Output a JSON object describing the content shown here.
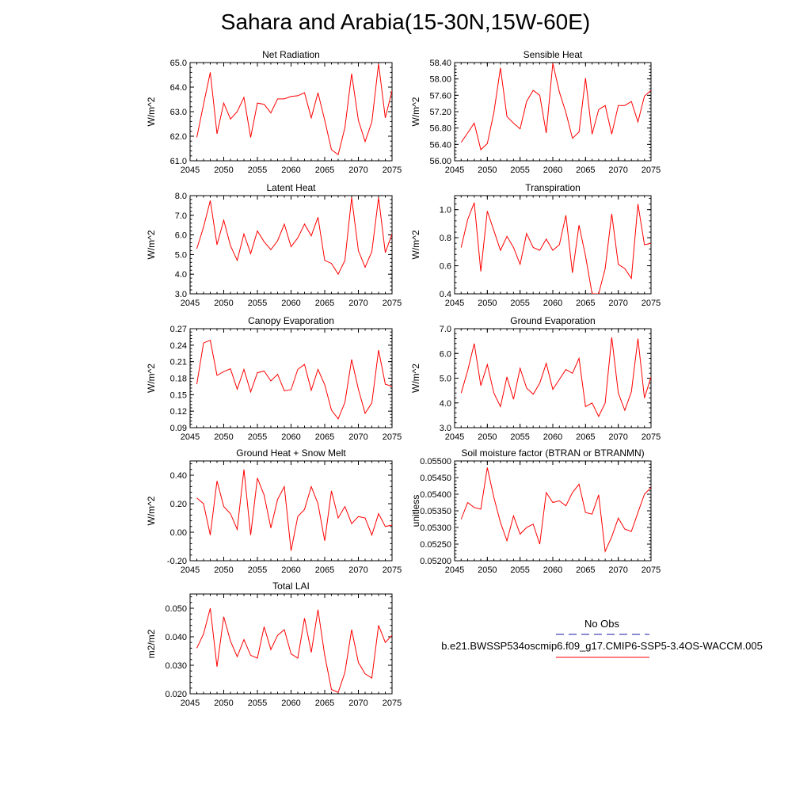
{
  "figure": {
    "title": "Sahara and Arabia(15-30N,15W-60E)"
  },
  "legend": {
    "obs_label": "No Obs",
    "model_label": "b.e21.BWSSP534oscmip6.f09_g17.CMIP6-SSP5-3.4OS-WACCM.005",
    "obs_color": "#1a1aa6",
    "model_color": "#ff0000"
  },
  "chart_data": [
    {
      "type": "line",
      "title": "Net Radiation",
      "ylabel": "W/m^2",
      "xlabel": "",
      "xlim": [
        2045,
        2075
      ],
      "ylim": [
        61.0,
        65.0
      ],
      "yticks": [
        "61.0",
        "62.0",
        "63.0",
        "64.0",
        "65.0"
      ],
      "yticks_values": [
        61.0,
        62.0,
        63.0,
        64.0,
        65.0
      ],
      "xticks": [
        "2045",
        "2050",
        "2055",
        "2060",
        "2065",
        "2070",
        "2075"
      ],
      "series": [
        {
          "name": "b.e21.BWSSP534oscmip6.f09_g17.CMIP6-SSP5-3.4OS-WACCM.005",
          "color": "#ff0000",
          "x": [
            2046,
            2047,
            2048,
            2049,
            2050,
            2051,
            2052,
            2053,
            2054,
            2055,
            2056,
            2057,
            2058,
            2059,
            2060,
            2061,
            2062,
            2063,
            2064,
            2065,
            2066,
            2067,
            2068,
            2069,
            2070,
            2071,
            2072,
            2073,
            2074,
            2075
          ],
          "values": [
            61.95,
            63.3,
            64.6,
            62.1,
            63.35,
            62.7,
            63.0,
            63.58,
            61.95,
            63.35,
            63.3,
            62.95,
            63.52,
            63.52,
            63.62,
            63.65,
            63.77,
            62.75,
            63.77,
            62.65,
            61.45,
            61.25,
            62.35,
            64.55,
            62.65,
            61.78,
            62.58,
            64.95,
            62.75,
            63.85
          ]
        }
      ]
    },
    {
      "type": "line",
      "title": "Sensible Heat",
      "ylabel": "W/m^2",
      "xlabel": "",
      "xlim": [
        2045,
        2075
      ],
      "ylim": [
        56.0,
        58.4
      ],
      "yticks": [
        "56.00",
        "56.40",
        "56.80",
        "57.20",
        "57.60",
        "58.00",
        "58.40"
      ],
      "yticks_values": [
        56.0,
        56.4,
        56.8,
        57.2,
        57.6,
        58.0,
        58.4
      ],
      "xticks": [
        "2045",
        "2050",
        "2055",
        "2060",
        "2065",
        "2070",
        "2075"
      ],
      "series": [
        {
          "name": "b.e21.BWSSP534oscmip6.f09_g17.CMIP6-SSP5-3.4OS-WACCM.005",
          "color": "#ff0000",
          "x": [
            2046,
            2047,
            2048,
            2049,
            2050,
            2051,
            2052,
            2053,
            2054,
            2055,
            2056,
            2057,
            2058,
            2059,
            2060,
            2061,
            2062,
            2063,
            2064,
            2065,
            2066,
            2067,
            2068,
            2069,
            2070,
            2071,
            2072,
            2073,
            2074,
            2075
          ],
          "values": [
            56.45,
            56.68,
            56.92,
            56.27,
            56.42,
            57.18,
            58.27,
            57.08,
            56.92,
            56.78,
            57.45,
            57.72,
            57.6,
            56.68,
            58.38,
            57.68,
            57.18,
            56.55,
            56.7,
            58.02,
            56.65,
            57.25,
            57.35,
            56.65,
            57.35,
            57.35,
            57.45,
            56.95,
            57.58,
            57.72
          ]
        }
      ]
    },
    {
      "type": "line",
      "title": "Latent Heat",
      "ylabel": "W/m^2",
      "xlabel": "",
      "xlim": [
        2045,
        2075
      ],
      "ylim": [
        3.0,
        8.0
      ],
      "yticks": [
        "3.0",
        "4.0",
        "5.0",
        "6.0",
        "7.0",
        "8.0"
      ],
      "yticks_values": [
        3.0,
        4.0,
        5.0,
        6.0,
        7.0,
        8.0
      ],
      "xticks": [
        "2045",
        "2050",
        "2055",
        "2060",
        "2065",
        "2070",
        "2075"
      ],
      "series": [
        {
          "name": "b.e21.BWSSP534oscmip6.f09_g17.CMIP6-SSP5-3.4OS-WACCM.005",
          "color": "#ff0000",
          "x": [
            2046,
            2047,
            2048,
            2049,
            2050,
            2051,
            2052,
            2053,
            2054,
            2055,
            2056,
            2057,
            2058,
            2059,
            2060,
            2061,
            2062,
            2063,
            2064,
            2065,
            2066,
            2067,
            2068,
            2069,
            2070,
            2071,
            2072,
            2073,
            2074,
            2075
          ],
          "values": [
            5.3,
            6.4,
            7.75,
            5.5,
            6.75,
            5.45,
            4.7,
            6.05,
            5.05,
            6.2,
            5.65,
            5.25,
            5.7,
            6.55,
            5.4,
            5.85,
            6.55,
            5.95,
            6.9,
            4.7,
            4.55,
            4.0,
            4.7,
            7.9,
            5.2,
            4.35,
            5.15,
            7.9,
            5.1,
            6.05
          ]
        }
      ]
    },
    {
      "type": "line",
      "title": "Transpiration",
      "ylabel": "W/m^2",
      "xlabel": "",
      "xlim": [
        2045,
        2075
      ],
      "ylim": [
        0.4,
        1.1
      ],
      "yticks": [
        "0.4",
        "0.6",
        "0.8",
        "1.0"
      ],
      "yticks_values": [
        0.4,
        0.6,
        0.8,
        1.0
      ],
      "xticks": [
        "2045",
        "2050",
        "2055",
        "2060",
        "2065",
        "2070",
        "2075"
      ],
      "series": [
        {
          "name": "b.e21.BWSSP534oscmip6.f09_g17.CMIP6-SSP5-3.4OS-WACCM.005",
          "color": "#ff0000",
          "x": [
            2046,
            2047,
            2048,
            2049,
            2050,
            2051,
            2052,
            2053,
            2054,
            2055,
            2056,
            2057,
            2058,
            2059,
            2060,
            2061,
            2062,
            2063,
            2064,
            2065,
            2066,
            2067,
            2068,
            2069,
            2070,
            2071,
            2072,
            2073,
            2074,
            2075
          ],
          "values": [
            0.73,
            0.93,
            1.05,
            0.56,
            0.99,
            0.85,
            0.71,
            0.81,
            0.73,
            0.61,
            0.83,
            0.73,
            0.71,
            0.79,
            0.71,
            0.75,
            0.96,
            0.55,
            0.89,
            0.67,
            0.4,
            0.4,
            0.58,
            0.97,
            0.61,
            0.58,
            0.51,
            1.04,
            0.75,
            0.76
          ]
        }
      ]
    },
    {
      "type": "line",
      "title": "Canopy Evaporation",
      "ylabel": "W/m^2",
      "xlabel": "",
      "xlim": [
        2045,
        2075
      ],
      "ylim": [
        0.09,
        0.27
      ],
      "yticks": [
        "0.09",
        "0.12",
        "0.15",
        "0.18",
        "0.21",
        "0.24",
        "0.27"
      ],
      "yticks_values": [
        0.09,
        0.12,
        0.15,
        0.18,
        0.21,
        0.24,
        0.27
      ],
      "xticks": [
        "2045",
        "2050",
        "2055",
        "2060",
        "2065",
        "2070",
        "2075"
      ],
      "series": [
        {
          "name": "b.e21.BWSSP534oscmip6.f09_g17.CMIP6-SSP5-3.4OS-WACCM.005",
          "color": "#ff0000",
          "x": [
            2046,
            2047,
            2048,
            2049,
            2050,
            2051,
            2052,
            2053,
            2054,
            2055,
            2056,
            2057,
            2058,
            2059,
            2060,
            2061,
            2062,
            2063,
            2064,
            2065,
            2066,
            2067,
            2068,
            2069,
            2070,
            2071,
            2072,
            2073,
            2074,
            2075
          ],
          "values": [
            0.169,
            0.244,
            0.249,
            0.185,
            0.192,
            0.197,
            0.16,
            0.196,
            0.155,
            0.19,
            0.193,
            0.175,
            0.187,
            0.157,
            0.159,
            0.196,
            0.205,
            0.158,
            0.196,
            0.168,
            0.122,
            0.106,
            0.136,
            0.214,
            0.16,
            0.116,
            0.135,
            0.231,
            0.169,
            0.165
          ]
        }
      ]
    },
    {
      "type": "line",
      "title": "Ground Evaporation",
      "ylabel": "W/m^2",
      "xlabel": "",
      "xlim": [
        2045,
        2075
      ],
      "ylim": [
        3.0,
        7.0
      ],
      "yticks": [
        "3.0",
        "4.0",
        "5.0",
        "6.0",
        "7.0"
      ],
      "yticks_values": [
        3.0,
        4.0,
        5.0,
        6.0,
        7.0
      ],
      "xticks": [
        "2045",
        "2050",
        "2055",
        "2060",
        "2065",
        "2070",
        "2075"
      ],
      "series": [
        {
          "name": "b.e21.BWSSP534oscmip6.f09_g17.CMIP6-SSP5-3.4OS-WACCM.005",
          "color": "#ff0000",
          "x": [
            2046,
            2047,
            2048,
            2049,
            2050,
            2051,
            2052,
            2053,
            2054,
            2055,
            2056,
            2057,
            2058,
            2059,
            2060,
            2061,
            2062,
            2063,
            2064,
            2065,
            2066,
            2067,
            2068,
            2069,
            2070,
            2071,
            2072,
            2073,
            2074,
            2075
          ],
          "values": [
            4.4,
            5.3,
            6.4,
            4.7,
            5.55,
            4.4,
            3.85,
            5.05,
            4.15,
            5.4,
            4.6,
            4.35,
            4.8,
            5.6,
            4.55,
            4.95,
            5.35,
            5.2,
            5.8,
            3.85,
            4.0,
            3.45,
            4.0,
            6.65,
            4.4,
            3.7,
            4.45,
            6.6,
            4.2,
            5.05
          ]
        }
      ]
    },
    {
      "type": "line",
      "title": "Ground Heat + Snow Melt",
      "ylabel": "W/m^2",
      "xlabel": "",
      "xlim": [
        2045,
        2075
      ],
      "ylim": [
        -0.2,
        0.5
      ],
      "yticks": [
        "-0.20",
        "0.00",
        "0.20",
        "0.40"
      ],
      "yticks_values": [
        -0.2,
        0.0,
        0.2,
        0.4
      ],
      "xticks": [
        "2045",
        "2050",
        "2055",
        "2060",
        "2065",
        "2070",
        "2075"
      ],
      "series": [
        {
          "name": "b.e21.BWSSP534oscmip6.f09_g17.CMIP6-SSP5-3.4OS-WACCM.005",
          "color": "#ff0000",
          "x": [
            2046,
            2047,
            2048,
            2049,
            2050,
            2051,
            2052,
            2053,
            2054,
            2055,
            2056,
            2057,
            2058,
            2059,
            2060,
            2061,
            2062,
            2063,
            2064,
            2065,
            2066,
            2067,
            2068,
            2069,
            2070,
            2071,
            2072,
            2073,
            2074,
            2075
          ],
          "values": [
            0.24,
            0.2,
            -0.02,
            0.36,
            0.18,
            0.13,
            0.02,
            0.44,
            -0.02,
            0.38,
            0.26,
            0.03,
            0.23,
            0.32,
            -0.13,
            0.11,
            0.16,
            0.32,
            0.2,
            -0.06,
            0.29,
            0.1,
            0.18,
            0.06,
            0.11,
            0.1,
            -0.02,
            0.13,
            0.04,
            0.05
          ]
        }
      ]
    },
    {
      "type": "line",
      "title": "Soil moisture factor (BTRAN or BTRANMN)",
      "ylabel": "unitless",
      "xlabel": "",
      "xlim": [
        2045,
        2075
      ],
      "ylim": [
        0.052,
        0.055
      ],
      "yticks": [
        "0.05200",
        "0.05250",
        "0.05300",
        "0.05350",
        "0.05400",
        "0.05450",
        "0.05500"
      ],
      "yticks_values": [
        0.052,
        0.0525,
        0.053,
        0.0535,
        0.054,
        0.0545,
        0.055
      ],
      "xticks": [
        "2045",
        "2050",
        "2055",
        "2060",
        "2065",
        "2070",
        "2075"
      ],
      "series": [
        {
          "name": "b.e21.BWSSP534oscmip6.f09_g17.CMIP6-SSP5-3.4OS-WACCM.005",
          "color": "#ff0000",
          "x": [
            2046,
            2047,
            2048,
            2049,
            2050,
            2051,
            2052,
            2053,
            2054,
            2055,
            2056,
            2057,
            2058,
            2059,
            2060,
            2061,
            2062,
            2063,
            2064,
            2065,
            2066,
            2067,
            2068,
            2069,
            2070,
            2071,
            2072,
            2073,
            2074,
            2075
          ],
          "values": [
            0.05325,
            0.05375,
            0.0536,
            0.05355,
            0.0548,
            0.0539,
            0.05315,
            0.0526,
            0.05335,
            0.0528,
            0.053,
            0.0531,
            0.0525,
            0.05405,
            0.05375,
            0.0538,
            0.05365,
            0.05405,
            0.0543,
            0.05345,
            0.0534,
            0.05398,
            0.05228,
            0.05272,
            0.05328,
            0.05295,
            0.05288,
            0.05345,
            0.054,
            0.0542
          ]
        }
      ]
    },
    {
      "type": "line",
      "title": "Total LAI",
      "ylabel": "m2/m2",
      "xlabel": "",
      "xlim": [
        2045,
        2075
      ],
      "ylim": [
        0.02,
        0.055
      ],
      "yticks": [
        "0.020",
        "0.030",
        "0.040",
        "0.050"
      ],
      "yticks_values": [
        0.02,
        0.03,
        0.04,
        0.05
      ],
      "xticks": [
        "2045",
        "2050",
        "2055",
        "2060",
        "2065",
        "2070",
        "2075"
      ],
      "series": [
        {
          "name": "b.e21.BWSSP534oscmip6.f09_g17.CMIP6-SSP5-3.4OS-WACCM.005",
          "color": "#ff0000",
          "x": [
            2046,
            2047,
            2048,
            2049,
            2050,
            2051,
            2052,
            2053,
            2054,
            2055,
            2056,
            2057,
            2058,
            2059,
            2060,
            2061,
            2062,
            2063,
            2064,
            2065,
            2066,
            2067,
            2068,
            2069,
            2070,
            2071,
            2072,
            2073,
            2074,
            2075
          ],
          "values": [
            0.036,
            0.041,
            0.05,
            0.0295,
            0.047,
            0.0385,
            0.033,
            0.039,
            0.0335,
            0.0325,
            0.0435,
            0.0355,
            0.0405,
            0.0425,
            0.034,
            0.0325,
            0.0465,
            0.0345,
            0.0495,
            0.0335,
            0.0215,
            0.0205,
            0.0275,
            0.0425,
            0.031,
            0.027,
            0.0255,
            0.044,
            0.038,
            0.0405
          ]
        }
      ]
    }
  ]
}
